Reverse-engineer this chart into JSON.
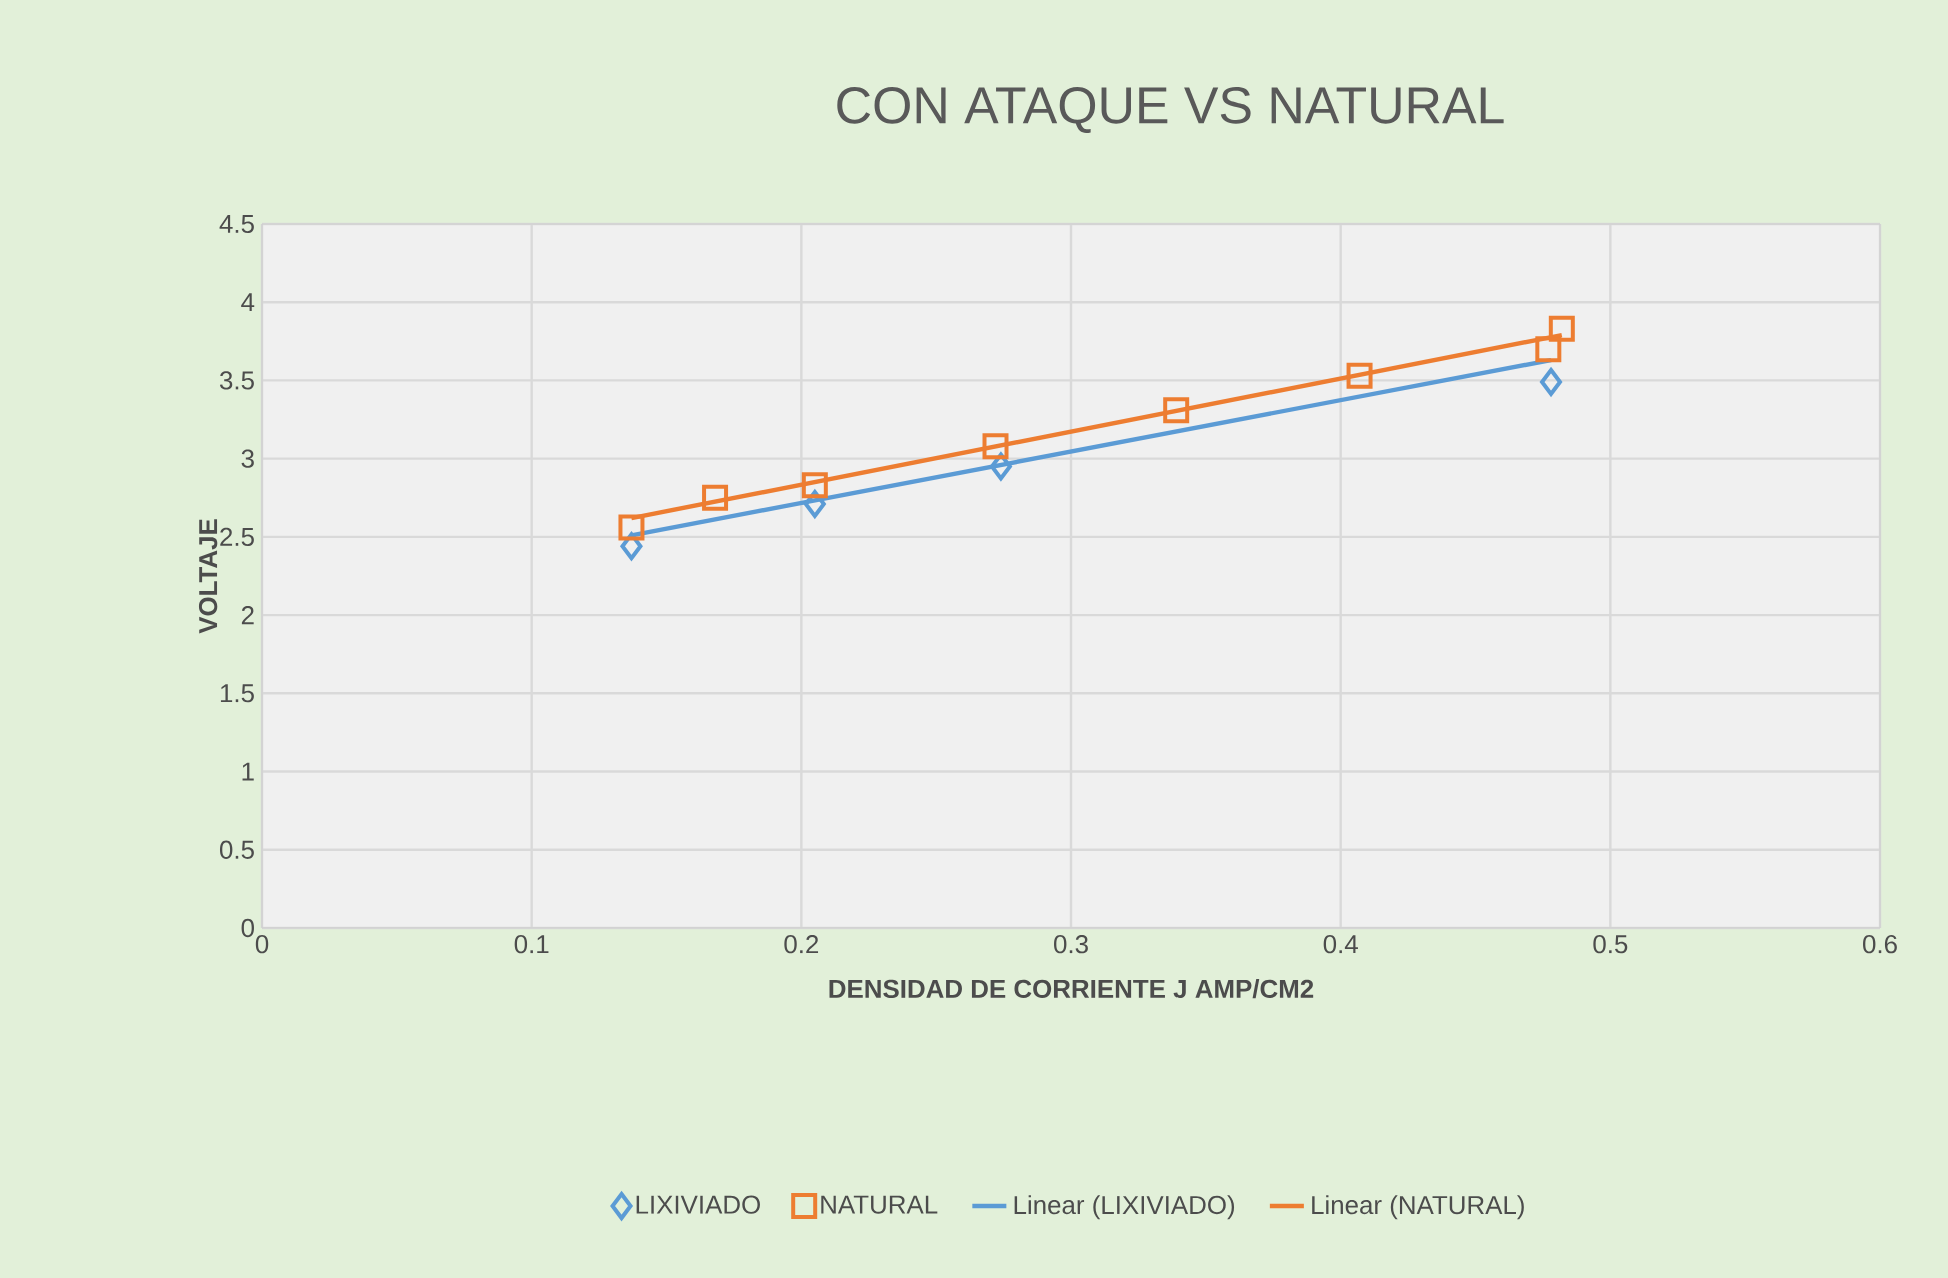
{
  "chart_data": {
    "type": "scatter",
    "title": "CON ATAQUE VS NATURAL",
    "xlabel": "DENSIDAD DE CORRIENTE J AMP/CM2",
    "ylabel": "VOLTAJE",
    "xlim": [
      0,
      0.6
    ],
    "xticks": [
      0,
      0.1,
      0.2,
      0.3,
      0.4,
      0.5,
      0.6
    ],
    "ylim": [
      0,
      4.5
    ],
    "yticks": [
      0,
      0.5,
      1,
      1.5,
      2,
      2.5,
      3,
      3.5,
      4,
      4.5
    ],
    "grid": true,
    "legend": "bottom",
    "series": [
      {
        "name": "LIXIVIADO",
        "marker": "diamond",
        "color": "#5b9bd5",
        "x": [
          0.137,
          0.205,
          0.274,
          0.478
        ],
        "values": [
          2.44,
          2.71,
          2.95,
          3.49
        ]
      },
      {
        "name": "NATURAL",
        "marker": "square",
        "color": "#ed7d31",
        "x": [
          0.137,
          0.168,
          0.205,
          0.272,
          0.339,
          0.407,
          0.477,
          0.482
        ],
        "values": [
          2.56,
          2.75,
          2.83,
          3.08,
          3.31,
          3.53,
          3.7,
          3.83
        ]
      },
      {
        "name": "Linear (LIXIVIADO)",
        "type": "line",
        "marker": "none",
        "line_style": "solid",
        "color": "#5b9bd5",
        "x": [
          0.137,
          0.478
        ],
        "values": [
          2.51,
          3.63
        ]
      },
      {
        "name": "Linear (NATURAL)",
        "type": "line",
        "marker": "none",
        "line_style": "solid",
        "color": "#ed7d31",
        "x": [
          0.137,
          0.482
        ],
        "values": [
          2.62,
          3.79
        ]
      }
    ]
  }
}
